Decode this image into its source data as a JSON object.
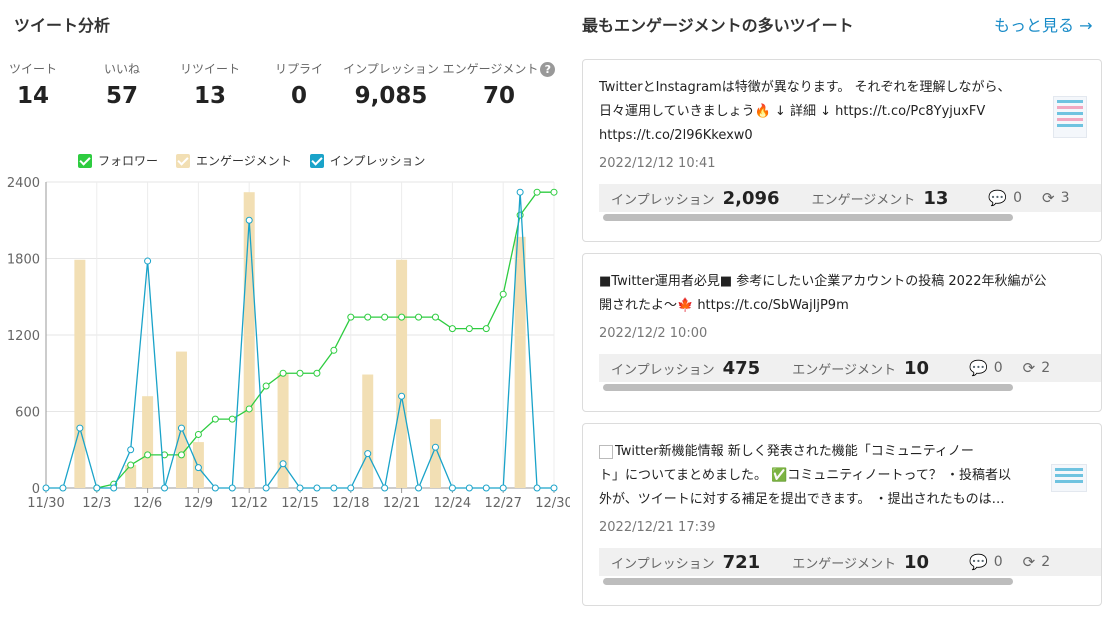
{
  "left_title": "ツイート分析",
  "stats": [
    {
      "label": "ツイート",
      "value": "14"
    },
    {
      "label": "いいね",
      "value": "57"
    },
    {
      "label": "リツイート",
      "value": "13"
    },
    {
      "label": "リプライ",
      "value": "0"
    },
    {
      "label": "インプレッション",
      "value": "9,085"
    },
    {
      "label": "エンゲージメント",
      "value": "70"
    }
  ],
  "help_icon_glyph": "?",
  "legend": [
    {
      "label": "フォロワー",
      "color": "#2ecc40"
    },
    {
      "label": "エンゲージメント",
      "color": "#f2dfb4"
    },
    {
      "label": "インプレッション",
      "color": "#1aa3c9"
    }
  ],
  "chart_data": {
    "type": "bar+line",
    "y_ticks": [
      "2400",
      "1800",
      "1200",
      "600",
      "0"
    ],
    "ylim": [
      0,
      2400
    ],
    "x_tick_labels": [
      "11/30",
      "12/3",
      "12/6",
      "12/9",
      "12/12",
      "12/15",
      "12/18",
      "12/21",
      "12/24",
      "12/27",
      "12/30"
    ],
    "x": [
      "11/30",
      "12/1",
      "12/2",
      "12/3",
      "12/4",
      "12/5",
      "12/6",
      "12/7",
      "12/8",
      "12/9",
      "12/10",
      "12/11",
      "12/12",
      "12/13",
      "12/14",
      "12/15",
      "12/16",
      "12/17",
      "12/18",
      "12/19",
      "12/20",
      "12/21",
      "12/22",
      "12/23",
      "12/24",
      "12/25",
      "12/26",
      "12/27",
      "12/28",
      "12/29",
      "12/30"
    ],
    "grid": true,
    "series": [
      {
        "name": "エンゲージメント",
        "kind": "bar",
        "color": "#f2dfb4",
        "values": [
          0,
          0,
          1790,
          0,
          0,
          180,
          720,
          0,
          1070,
          360,
          0,
          0,
          2320,
          0,
          900,
          0,
          0,
          0,
          0,
          890,
          0,
          1790,
          0,
          540,
          0,
          0,
          0,
          0,
          1970,
          0,
          0
        ]
      },
      {
        "name": "フォロワー",
        "kind": "line",
        "color": "#2ecc40",
        "values": [
          null,
          null,
          null,
          0,
          30,
          180,
          260,
          260,
          260,
          420,
          540,
          540,
          620,
          800,
          900,
          900,
          900,
          1080,
          1340,
          1340,
          1340,
          1340,
          1340,
          1340,
          1250,
          1250,
          1250,
          1520,
          2140,
          2320,
          2320
        ]
      },
      {
        "name": "インプレッション",
        "kind": "line",
        "color": "#1aa3c9",
        "values": [
          0,
          0,
          470,
          0,
          0,
          300,
          1780,
          0,
          470,
          160,
          0,
          0,
          2100,
          0,
          190,
          0,
          0,
          0,
          0,
          270,
          0,
          720,
          0,
          320,
          0,
          0,
          0,
          0,
          2320,
          0,
          0
        ]
      }
    ]
  },
  "right_title": "最もエンゲージメントの多いツイート",
  "more_link": "もっと見る",
  "more_arrow": "→",
  "metric_labels": {
    "impressions": "インプレッション",
    "engagement": "エンゲージメント"
  },
  "icons": {
    "reply": "💬",
    "retweet": "⟳"
  },
  "tweets": [
    {
      "lines": [
        "TwitterとInstagramは特徴が異なります。 それぞれを理解しながら、",
        "日々運用していきましょう🔥 ↓ 詳細 ↓ https://t.co/Pc8YyjuxFV",
        "https://t.co/2l96Kkexw0"
      ],
      "date": "2022/12/12 10:41",
      "impressions": "2,096",
      "engagement": "13",
      "replies": "0",
      "retweets": "3"
    },
    {
      "lines": [
        "■Twitter運用者必見■ 参考にしたい企業アカウントの投稿 2022年秋編が公",
        "開されたよ〜🍁 https://t.co/SbWajljP9m"
      ],
      "date": "2022/12/2 10:00",
      "impressions": "475",
      "engagement": "10",
      "replies": "0",
      "retweets": "2"
    },
    {
      "lines": [
        "Twitter新機能情報 新しく発表された機能「コミュニティノー",
        "ト」についてまとめました。 ✅コミュニティノートって？ ・投稿者以",
        "外が、ツイートに対する補足を提出できます。 ・提出されたものは…"
      ],
      "date": "2022/12/21 17:39",
      "impressions": "721",
      "engagement": "10",
      "replies": "0",
      "retweets": "2"
    }
  ]
}
